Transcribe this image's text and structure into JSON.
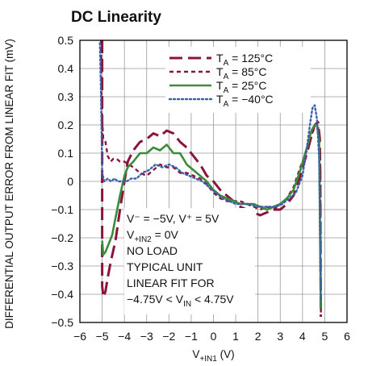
{
  "chart_data": {
    "type": "line",
    "title": "DC Linearity",
    "xlabel": {
      "main": "V",
      "sub": "+IN1",
      "unit": " (V)"
    },
    "ylabel": "DIFFERENTIAL OUTPUT ERROR FROM LINEAR FIT (mV)",
    "xlim": [
      -6,
      6
    ],
    "ylim": [
      -0.5,
      0.5
    ],
    "xticks": [
      "−6",
      "−5",
      "−4",
      "−3",
      "−2",
      "−1",
      "0",
      "1",
      "2",
      "3",
      "4",
      "5",
      "6"
    ],
    "yticks": [
      "0.5",
      "0.4",
      "0.3",
      "0.2",
      "0.1",
      "0",
      "−0.1",
      "−0.2",
      "−0.3",
      "−0.4",
      "−0.5"
    ],
    "grid": true,
    "legend_position": "top-right",
    "series": [
      {
        "name": "TA = 125°C",
        "legend": {
          "main": "T",
          "sub": "A",
          "rest": " = 125°C"
        },
        "color": "#8b1538",
        "dash": "long-dash",
        "x": [
          -5.0,
          -5.0,
          -4.95,
          -4.85,
          -4.75,
          -4.6,
          -4.4,
          -4.2,
          -4.0,
          -3.85,
          -3.6,
          -3.3,
          -3.0,
          -2.7,
          -2.4,
          -2.1,
          -1.8,
          -1.5,
          -1.2,
          -0.9,
          -0.6,
          -0.3,
          0.0,
          0.3,
          0.6,
          0.9,
          1.2,
          1.5,
          1.8,
          2.1,
          2.4,
          2.7,
          3.0,
          3.3,
          3.6,
          3.9,
          4.2,
          4.4,
          4.55,
          4.7,
          4.78,
          4.8,
          4.82
        ],
        "y": [
          0.5,
          -0.37,
          -0.41,
          -0.39,
          -0.34,
          -0.28,
          -0.21,
          -0.1,
          0.0,
          0.07,
          0.11,
          0.14,
          0.15,
          0.17,
          0.16,
          0.18,
          0.17,
          0.14,
          0.12,
          0.09,
          0.06,
          0.02,
          0.0,
          -0.03,
          -0.05,
          -0.07,
          -0.09,
          -0.1,
          -0.11,
          -0.12,
          -0.11,
          -0.1,
          -0.1,
          -0.08,
          -0.05,
          0.02,
          0.1,
          0.16,
          0.2,
          0.21,
          0.15,
          0.0,
          -0.48
        ]
      },
      {
        "name": "TA = 85°C",
        "legend": {
          "main": "T",
          "sub": "A",
          "rest": " = 85°C"
        },
        "color": "#8b1538",
        "dash": "short-dash",
        "x": [
          -5.05,
          -5.02,
          -4.95,
          -4.85,
          -4.75,
          -4.62,
          -4.5,
          -4.35,
          -4.2,
          -4.0,
          -3.8,
          -3.6,
          -3.3,
          -3.0,
          -2.7,
          -2.4,
          -2.1,
          -1.8,
          -1.5,
          -1.2,
          -0.9,
          -0.6,
          -0.3,
          0.0,
          0.3,
          0.6,
          0.9,
          1.2,
          1.5,
          1.8,
          2.1,
          2.4,
          2.7,
          3.0,
          3.3,
          3.6,
          3.9,
          4.2,
          4.4,
          4.55,
          4.7,
          4.8,
          4.83
        ],
        "y": [
          0.5,
          0.25,
          0.15,
          0.14,
          0.09,
          0.07,
          0.08,
          0.08,
          0.07,
          0.07,
          0.06,
          0.05,
          0.03,
          0.02,
          0.04,
          0.06,
          0.05,
          0.05,
          0.03,
          0.03,
          0.02,
          0.01,
          -0.01,
          -0.04,
          -0.06,
          -0.07,
          -0.07,
          -0.07,
          -0.08,
          -0.09,
          -0.1,
          -0.09,
          -0.1,
          -0.08,
          -0.06,
          -0.02,
          0.05,
          0.11,
          0.16,
          0.2,
          0.2,
          0.05,
          -0.48
        ]
      },
      {
        "name": "TA = 25°C",
        "legend": {
          "main": "T",
          "sub": "A",
          "rest": " = 25°C"
        },
        "color": "#3a8c3a",
        "dash": "solid",
        "x": [
          -5.0,
          -4.95,
          -4.85,
          -4.7,
          -4.55,
          -4.4,
          -4.2,
          -4.0,
          -3.85,
          -3.6,
          -3.3,
          -3.0,
          -2.7,
          -2.4,
          -2.1,
          -1.8,
          -1.5,
          -1.2,
          -0.9,
          -0.6,
          -0.3,
          0.0,
          0.3,
          0.6,
          0.9,
          1.2,
          1.5,
          1.8,
          2.1,
          2.4,
          2.7,
          3.0,
          3.3,
          3.6,
          3.9,
          4.2,
          4.4,
          4.55,
          4.65,
          4.75,
          4.82
        ],
        "y": [
          -0.21,
          -0.26,
          -0.25,
          -0.22,
          -0.19,
          -0.13,
          -0.05,
          0.02,
          0.05,
          0.07,
          0.1,
          0.1,
          0.12,
          0.11,
          0.13,
          0.1,
          0.1,
          0.06,
          0.04,
          0.02,
          0.0,
          -0.03,
          -0.05,
          -0.06,
          -0.07,
          -0.08,
          -0.08,
          -0.08,
          -0.09,
          -0.1,
          -0.09,
          -0.08,
          -0.06,
          -0.03,
          0.04,
          0.12,
          0.18,
          0.2,
          0.2,
          0.14,
          -0.45
        ]
      },
      {
        "name": "TA = −40°C",
        "legend": {
          "main": "T",
          "sub": "A",
          "rest": " = −40°C"
        },
        "color": "#3b5fa8",
        "dash": "dotted",
        "x": [
          -5.1,
          -5.05,
          -5.0,
          -4.9,
          -4.75,
          -4.6,
          -4.45,
          -4.3,
          -4.1,
          -3.9,
          -3.7,
          -3.45,
          -3.2,
          -2.9,
          -2.6,
          -2.3,
          -2.0,
          -1.7,
          -1.4,
          -1.1,
          -0.8,
          -0.5,
          -0.2,
          0.1,
          0.4,
          0.7,
          1.0,
          1.3,
          1.6,
          1.9,
          2.2,
          2.5,
          2.8,
          3.1,
          3.4,
          3.7,
          4.0,
          4.2,
          4.35,
          4.45,
          4.55,
          4.65,
          4.75,
          4.82
        ],
        "y": [
          0.49,
          0.3,
          0.03,
          0.0,
          0.01,
          0.0,
          0.01,
          0.0,
          0.0,
          0.0,
          0.01,
          0.01,
          0.03,
          0.04,
          0.06,
          0.05,
          0.06,
          0.05,
          0.03,
          0.02,
          0.01,
          0.0,
          -0.02,
          -0.04,
          -0.06,
          -0.07,
          -0.08,
          -0.08,
          -0.08,
          -0.09,
          -0.09,
          -0.09,
          -0.09,
          -0.08,
          -0.06,
          -0.04,
          0.02,
          0.12,
          0.21,
          0.26,
          0.27,
          0.22,
          0.08,
          -0.42
        ]
      }
    ],
    "annotations": [
      {
        "kind": "plain",
        "text": "V⁻ = −5V, V⁺ = 5V"
      },
      {
        "kind": "sub",
        "main": "V",
        "sub": "+IN2",
        "rest": " = 0V"
      },
      {
        "kind": "plain",
        "text": "NO LOAD"
      },
      {
        "kind": "plain",
        "text": "TYPICAL UNIT"
      },
      {
        "kind": "plain",
        "text": "LINEAR FIT FOR"
      },
      {
        "kind": "sub-mid",
        "pre": "−4.75V < V",
        "sub": "IN",
        "rest": " < 4.75V"
      }
    ]
  }
}
